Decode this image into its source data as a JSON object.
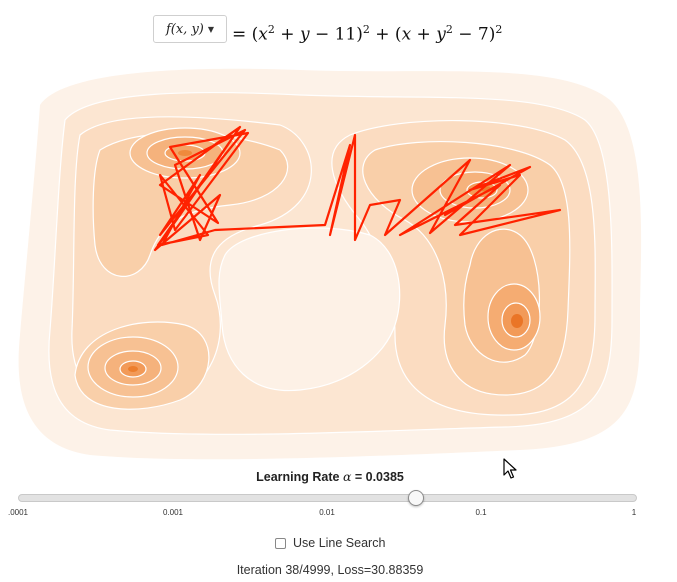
{
  "function_selector": {
    "label": "f(x, y)",
    "icon": "caret-down-icon"
  },
  "formula": {
    "lhs": "= (",
    "term1": "x",
    "term1_sup": "2",
    "plus1": " + ",
    "term2": "y",
    "minus1": " − 11)",
    "sq1": "2",
    "plus_mid": " + (",
    "term3": "x",
    "plus2": " + ",
    "term4": "y",
    "term4_sup": "2",
    "minus2": " − 7)",
    "sq2": "2"
  },
  "colors": {
    "path": "#ff2200",
    "contour_line": "#ffffff",
    "fill_low": "#fdf1e6",
    "fill_high": "#f39c4a"
  },
  "learning_rate": {
    "label_prefix": "Learning Rate ",
    "alpha_symbol": "α",
    "label_suffix": " = 0.0385",
    "value": 0.0385,
    "scale": "log",
    "min": 0.0001,
    "max": 1,
    "ticks": [
      ".0001",
      "0.001",
      "0.01",
      "0.1",
      "1"
    ]
  },
  "line_search": {
    "label": "Use Line Search",
    "checked": false
  },
  "status": {
    "text": "Iteration 38/4999, Loss=30.88359"
  }
}
